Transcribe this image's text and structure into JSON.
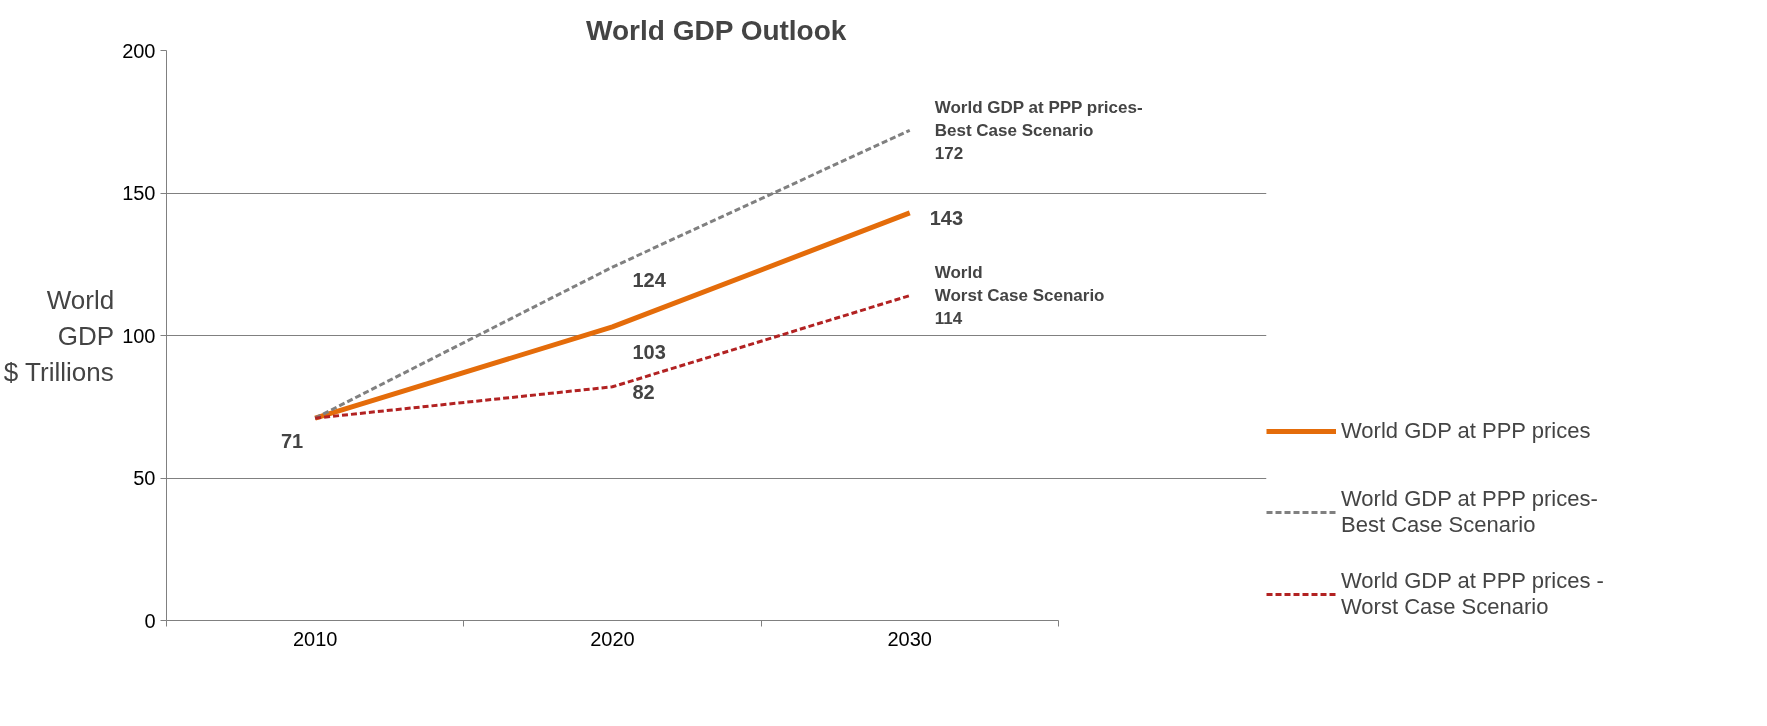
{
  "chart_data": {
    "type": "line",
    "title": "World GDP Outlook",
    "ylabel": "World\nGDP\n$ Trillions",
    "categories": [
      "2010",
      "2020",
      "2030"
    ],
    "series": [
      {
        "name": "World GDP at PPP prices",
        "color": "#e46c0a",
        "line_style": "solid",
        "values": [
          71,
          103,
          143
        ],
        "value_labels": [
          "71",
          "103",
          "143"
        ]
      },
      {
        "name": "World GDP at PPP prices-\nBest Case Scenario",
        "color": "#808080",
        "line_style": "dashed",
        "values": [
          71,
          124,
          172
        ],
        "value_labels": [
          null,
          "124",
          null
        ]
      },
      {
        "name": "World GDP at PPP prices -\nWorst Case Scenario",
        "color": "#b22222",
        "line_style": "dashed",
        "values": [
          71,
          82,
          114
        ],
        "value_labels": [
          null,
          "82",
          null
        ]
      }
    ],
    "annotations": [
      {
        "text": "World GDP at PPP prices-\nBest Case Scenario\n172",
        "x": "2030",
        "y": 172
      },
      {
        "text": "World\nWorst Case Scenario\n114",
        "x": "2030",
        "y": 114
      }
    ],
    "ylim": [
      0,
      200
    ],
    "yticks": [
      0,
      50,
      100,
      150,
      200
    ],
    "grid": "y",
    "legend": "right",
    "marker": "none"
  }
}
